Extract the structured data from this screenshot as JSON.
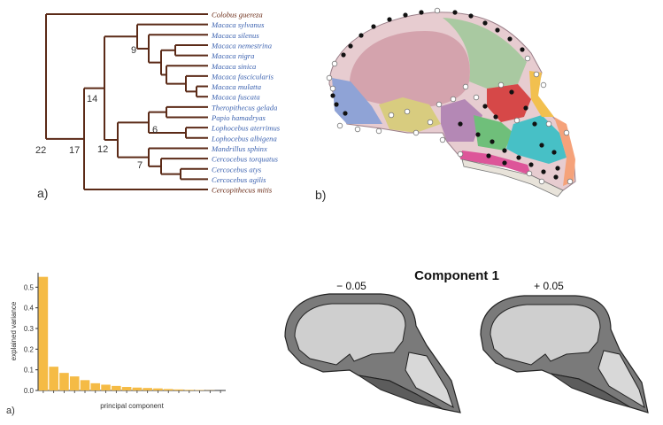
{
  "figure_top": {
    "panel_a_label": "a)",
    "panel_b_label": "b)",
    "tree": {
      "taxa": [
        {
          "name": "Colobus guereza",
          "group": "outgroup"
        },
        {
          "name": "Macaca sylvanus",
          "group": "ingroup"
        },
        {
          "name": "Macaca silenus",
          "group": "ingroup"
        },
        {
          "name": "Macaca nemestrina",
          "group": "ingroup"
        },
        {
          "name": "Macaca nigra",
          "group": "ingroup"
        },
        {
          "name": "Macaca sinica",
          "group": "ingroup"
        },
        {
          "name": "Macaca fascicularis",
          "group": "ingroup"
        },
        {
          "name": "Macaca mulatta",
          "group": "ingroup"
        },
        {
          "name": "Macaca fuscata",
          "group": "ingroup"
        },
        {
          "name": "Theropithecus gelada",
          "group": "ingroup"
        },
        {
          "name": "Papio hamadryas",
          "group": "ingroup"
        },
        {
          "name": "Lophocebus aterrimus",
          "group": "ingroup"
        },
        {
          "name": "Lophocebus albigena",
          "group": "ingroup"
        },
        {
          "name": "Mandrillus sphinx",
          "group": "ingroup"
        },
        {
          "name": "Cercocebus torquatus",
          "group": "ingroup"
        },
        {
          "name": "Cercocebus atys",
          "group": "ingroup"
        },
        {
          "name": "Cercocebus agilis",
          "group": "ingroup"
        },
        {
          "name": "Cercopithecus mitis",
          "group": "outgroup"
        }
      ],
      "node_labels": [
        "22",
        "17",
        "14",
        "12",
        "9",
        "6",
        "7"
      ],
      "colors": {
        "branch": "#5b2a17",
        "outgroup_text": "#6a2a15",
        "ingroup_text": "#3d63b0"
      }
    }
  },
  "figure_bottom": {
    "panel_label": "a)",
    "component_title": "Component 1",
    "minus_label": "− 0.05",
    "plus_label": "+ 0.05"
  },
  "chart_data": {
    "type": "bar",
    "xlabel": "principal component",
    "ylabel": "explained variance",
    "ylim": [
      0,
      0.57
    ],
    "yticks": [
      "0.0",
      "0.1",
      "0.2",
      "0.3",
      "0.4",
      "0.5"
    ],
    "values": [
      0.55,
      0.115,
      0.085,
      0.068,
      0.05,
      0.035,
      0.028,
      0.022,
      0.017,
      0.014,
      0.012,
      0.01,
      0.007,
      0.005,
      0.003,
      0.002,
      0.001,
      0.0
    ],
    "bar_color": "#f5bb45"
  }
}
